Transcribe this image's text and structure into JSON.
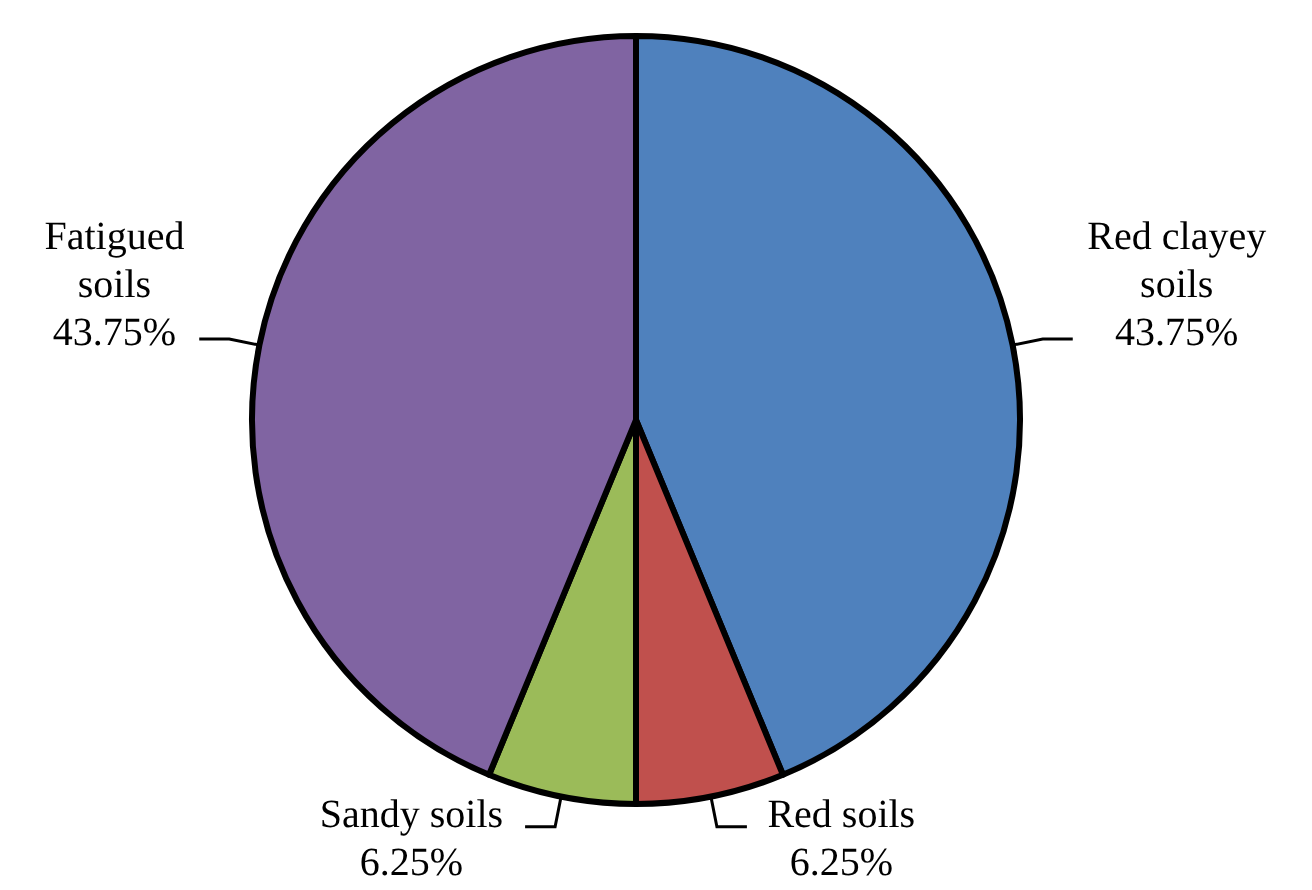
{
  "chart_data": {
    "type": "pie",
    "categories": [
      "Red clayey soils",
      "Red soils",
      "Sandy soils",
      "Fatigued soils"
    ],
    "values": [
      43.75,
      6.25,
      6.25,
      43.75
    ],
    "colors": [
      "#4f81bd",
      "#c0504d",
      "#9bbb59",
      "#8064a2"
    ],
    "value_labels": [
      "43.75%",
      "6.25%",
      "6.25%",
      "43.75%"
    ]
  }
}
